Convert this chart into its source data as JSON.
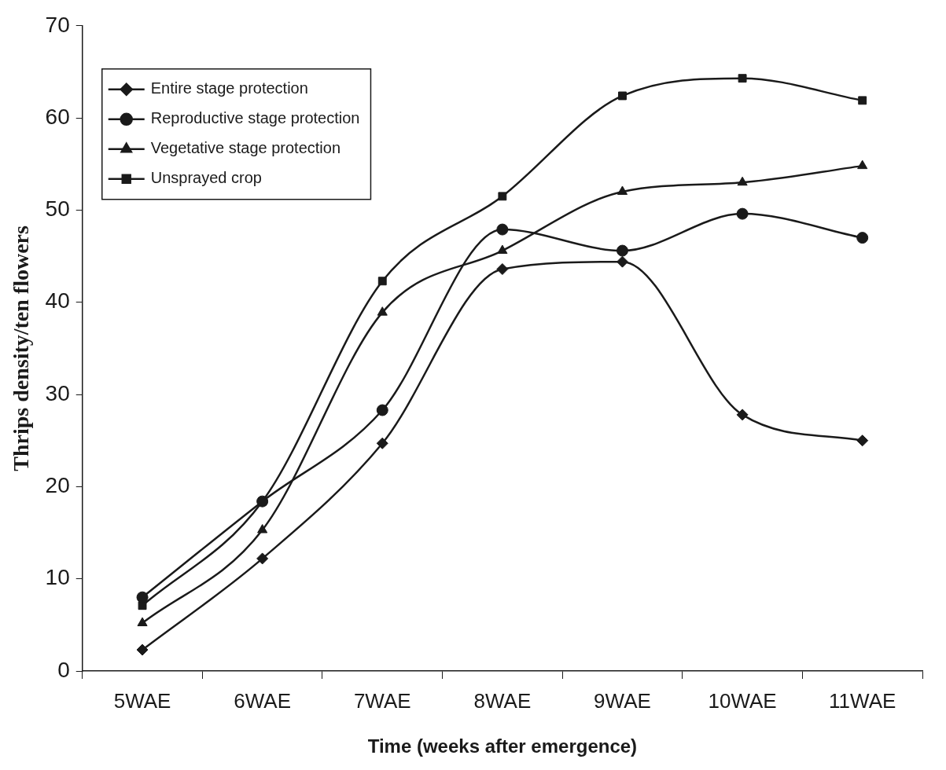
{
  "chart_data": {
    "type": "line",
    "xlabel": "Time (weeks after emergence)",
    "ylabel": "Thrips density/ten flowers",
    "categories": [
      "5WAE",
      "6WAE",
      "7WAE",
      "8WAE",
      "9WAE",
      "10WAE",
      "11WAE"
    ],
    "series": [
      {
        "name": "Entire stage protection",
        "color": "#1a1a1a",
        "marker": "diamond",
        "values": [
          2.3,
          12.2,
          24.7,
          43.6,
          44.4,
          27.8,
          25.0
        ]
      },
      {
        "name": "Reproductive stage protection",
        "color": "#1a1a1a",
        "marker": "circle",
        "values": [
          8.0,
          18.4,
          28.3,
          47.9,
          45.6,
          49.6,
          47.0
        ]
      },
      {
        "name": "Vegetative stage protection",
        "color": "#1a1a1a",
        "marker": "triangle",
        "values": [
          5.2,
          15.3,
          38.9,
          45.6,
          52.0,
          53.0,
          54.8
        ]
      },
      {
        "name": "Unsprayed crop",
        "color": "#1a1a1a",
        "marker": "square",
        "values": [
          7.1,
          18.4,
          42.3,
          51.5,
          62.4,
          64.3,
          61.9
        ]
      }
    ],
    "ylim": [
      0,
      70
    ],
    "yticks": [
      0,
      10,
      20,
      30,
      40,
      50,
      60,
      70
    ],
    "grid": false,
    "legend": "top left",
    "line_style": "solid"
  }
}
